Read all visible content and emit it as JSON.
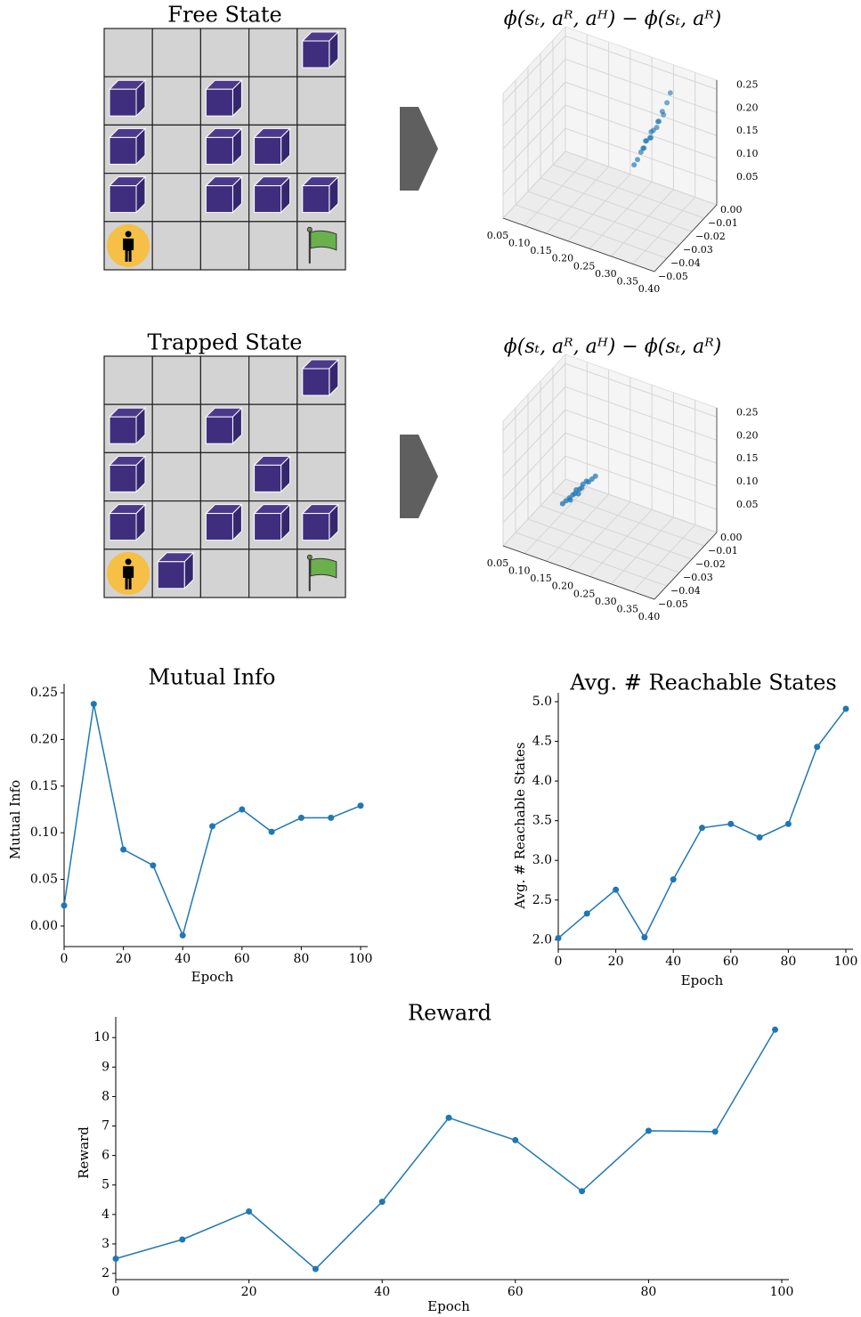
{
  "grids": [
    {
      "title": "Free State"
    },
    {
      "title": "Trapped State"
    }
  ],
  "chart_data": [
    {
      "type": "scatter3d",
      "title": "ϕ(sₜ, aᴿ, aᴴ) − ϕ(sₜ, aᴿ)",
      "color": "#1f77b4",
      "xlim": [
        0.05,
        0.4
      ],
      "ylim": [
        -0.05,
        0
      ],
      "zlim": [
        0,
        0.27
      ],
      "xticks": [
        0.05,
        {
          "value": 0.1,
          "label": "0.10"
        },
        0.15,
        {
          "value": 0.2,
          "label": "0.20"
        },
        0.25,
        {
          "value": 0.3,
          "label": "0.30"
        },
        0.35,
        {
          "value": 0.4,
          "label": "0.40"
        }
      ],
      "yticks": [
        {
          "value": 0,
          "label": "0.00"
        },
        {
          "value": -0.01,
          "label": "−0.01"
        },
        {
          "value": -0.02,
          "label": "−0.02"
        },
        {
          "value": -0.03,
          "label": "−0.03"
        },
        {
          "value": -0.04,
          "label": "−0.04"
        },
        {
          "value": -0.05,
          "label": "−0.05"
        }
      ],
      "zticks": [
        0.05,
        {
          "value": 0.1,
          "label": "0.10"
        },
        0.15,
        {
          "value": 0.2,
          "label": "0.20"
        },
        0.25
      ],
      "x": [
        0.255,
        0.26,
        0.265,
        0.27,
        0.27,
        0.275,
        0.28,
        0.28,
        0.285,
        0.29,
        0.29,
        0.295,
        0.3,
        0.3,
        0.305,
        0.31,
        0.275,
        0.285
      ],
      "y": [
        -0.016,
        -0.015,
        -0.014,
        -0.014,
        -0.012,
        -0.013,
        -0.012,
        -0.011,
        -0.011,
        -0.01,
        -0.009,
        -0.01,
        -0.008,
        -0.009,
        -0.007,
        -0.006,
        -0.015,
        -0.013
      ],
      "z": [
        0.085,
        0.095,
        0.11,
        0.12,
        0.13,
        0.135,
        0.14,
        0.15,
        0.155,
        0.16,
        0.17,
        0.175,
        0.185,
        0.195,
        0.21,
        0.23,
        0.125,
        0.145
      ]
    },
    {
      "type": "scatter3d",
      "title": "ϕ(sₜ, aᴿ, aᴴ) − ϕ(sₜ, aᴿ)",
      "color": "#1f77b4",
      "xlim": [
        0.05,
        0.4
      ],
      "ylim": [
        -0.05,
        0
      ],
      "zlim": [
        0,
        0.27
      ],
      "xticks": [
        0.05,
        {
          "value": 0.1,
          "label": "0.10"
        },
        0.15,
        {
          "value": 0.2,
          "label": "0.20"
        },
        0.25,
        {
          "value": 0.3,
          "label": "0.30"
        },
        0.35,
        {
          "value": 0.4,
          "label": "0.40"
        }
      ],
      "yticks": [
        {
          "value": 0,
          "label": "0.00"
        },
        {
          "value": -0.01,
          "label": "−0.01"
        },
        {
          "value": -0.02,
          "label": "−0.02"
        },
        {
          "value": -0.03,
          "label": "−0.03"
        },
        {
          "value": -0.04,
          "label": "−0.04"
        },
        {
          "value": -0.05,
          "label": "−0.05"
        }
      ],
      "zticks": [
        0.05,
        {
          "value": 0.1,
          "label": "0.10"
        },
        0.15,
        {
          "value": 0.2,
          "label": "0.20"
        },
        0.25
      ],
      "x": [
        0.13,
        0.135,
        0.14,
        0.145,
        0.15,
        0.15,
        0.155,
        0.16,
        0.16,
        0.165,
        0.17,
        0.175,
        0.18,
        0.145,
        0.155
      ],
      "y": [
        -0.03,
        -0.029,
        -0.028,
        -0.027,
        -0.027,
        -0.026,
        -0.025,
        -0.025,
        -0.024,
        -0.023,
        -0.023,
        -0.022,
        -0.021,
        -0.029,
        -0.026
      ],
      "z": [
        0.06,
        0.065,
        0.07,
        0.075,
        0.08,
        0.085,
        0.085,
        0.09,
        0.095,
        0.1,
        0.1,
        0.105,
        0.11,
        0.07,
        0.078
      ]
    },
    {
      "type": "line",
      "title": "Mutual Info",
      "xlabel": "Epoch",
      "ylabel": "Mutual Info",
      "color": "#1f77b4",
      "x": [
        0,
        10,
        20,
        30,
        40,
        50,
        60,
        70,
        80,
        90,
        100
      ],
      "values": [
        0.022,
        0.238,
        0.082,
        0.065,
        -0.01,
        0.107,
        0.125,
        0.101,
        0.116,
        0.116,
        0.129
      ],
      "xlim": [
        0,
        100
      ],
      "xticks": [
        0,
        20,
        40,
        60,
        80,
        100
      ],
      "ylim": [
        -0.022,
        0.25
      ],
      "yticks": [
        {
          "value": 0,
          "label": "0.00"
        },
        0.05,
        {
          "value": 0.1,
          "label": "0.10"
        },
        0.15,
        {
          "value": 0.2,
          "label": "0.20"
        },
        0.25
      ]
    },
    {
      "type": "line",
      "title": "Avg. # Reachable States",
      "xlabel": "Epoch",
      "ylabel": "Avg. # Reachable States",
      "color": "#1f77b4",
      "x": [
        0,
        10,
        20,
        30,
        40,
        50,
        60,
        70,
        80,
        90,
        100
      ],
      "values": [
        2.02,
        2.33,
        2.63,
        2.03,
        2.76,
        3.41,
        3.46,
        3.29,
        3.46,
        4.43,
        4.91
      ],
      "xlim": [
        0,
        100
      ],
      "xticks": [
        0,
        20,
        40,
        60,
        80,
        100
      ],
      "ylim": [
        1.88,
        5.0
      ],
      "yticks": [
        {
          "value": 2,
          "label": "2.0"
        },
        2.5,
        {
          "value": 3,
          "label": "3.0"
        },
        3.5,
        {
          "value": 4,
          "label": "4.0"
        },
        4.5,
        {
          "value": 5,
          "label": "5.0"
        }
      ]
    },
    {
      "type": "line",
      "title": "Reward",
      "xlabel": "Epoch",
      "ylabel": "Reward",
      "color": "#1f77b4",
      "x": [
        0,
        10,
        20,
        30,
        40,
        50,
        60,
        70,
        80,
        90,
        99
      ],
      "values": [
        2.5,
        3.15,
        4.1,
        2.15,
        4.43,
        7.28,
        6.52,
        4.79,
        6.84,
        6.81,
        10.27
      ],
      "xlim": [
        0,
        100
      ],
      "xticks": [
        0,
        20,
        40,
        60,
        80,
        100
      ],
      "ylim": [
        1.79,
        10.4
      ],
      "yticks": [
        2,
        3,
        4,
        5,
        6,
        7,
        8,
        9,
        10
      ]
    }
  ]
}
